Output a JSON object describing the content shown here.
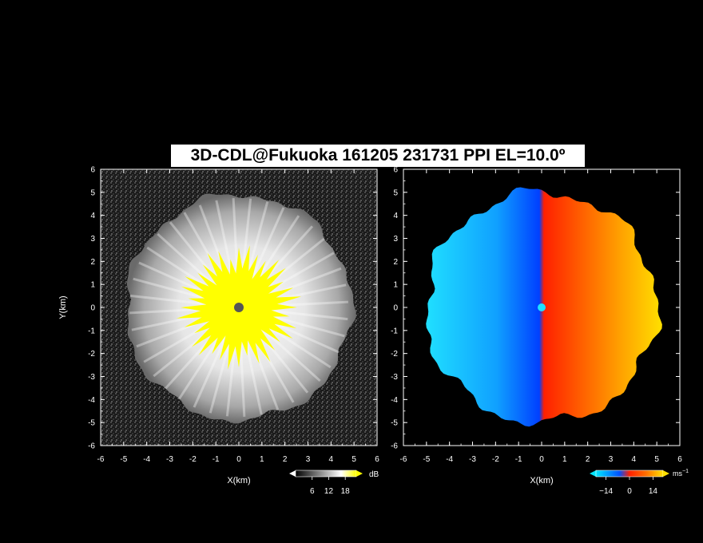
{
  "title": "3D-CDL@Fukuoka 161205 231731 PPI EL=10.0º",
  "chart_data": [
    {
      "type": "heatmap",
      "panel": "reflectivity",
      "xlabel": "X(km)",
      "ylabel": "Y(km)",
      "xlim": [
        -6,
        6
      ],
      "ylim": [
        -6,
        6
      ],
      "xticks": [
        "-6",
        "-5",
        "-4",
        "-3",
        "-2",
        "-1",
        "0",
        "1",
        "2",
        "3",
        "4",
        "5",
        "6"
      ],
      "yticks": [
        "-6",
        "-5",
        "-4",
        "-3",
        "-2",
        "-1",
        "0",
        "1",
        "2",
        "3",
        "4",
        "5",
        "6"
      ],
      "colorbar": {
        "unit": "dB",
        "ticks": [
          "6",
          "12",
          "18"
        ],
        "min": 0,
        "max": 22,
        "colors": [
          "#000000",
          "#ffffff",
          "#ffff00"
        ]
      },
      "echo_radius_km": 4.9,
      "saturated_core_radius_km": 2.5
    },
    {
      "type": "heatmap",
      "panel": "doppler-velocity",
      "xlabel": "X(km)",
      "xlim": [
        -6,
        6
      ],
      "ylim": [
        -6,
        6
      ],
      "xticks": [
        "-6",
        "-5",
        "-4",
        "-3",
        "-2",
        "-1",
        "0",
        "1",
        "2",
        "3",
        "4",
        "5",
        "6"
      ],
      "colorbar": {
        "unit": "ms",
        "unit_exponent": "−1",
        "ticks": [
          "−14",
          "0",
          "14"
        ],
        "min": -20,
        "max": 20,
        "colors": [
          "#00e6ff",
          "#0050ff",
          "#ff3000",
          "#ffd000"
        ]
      },
      "echo_radius_km": 5.0,
      "velocity_sign_change_x_km": 0
    }
  ]
}
